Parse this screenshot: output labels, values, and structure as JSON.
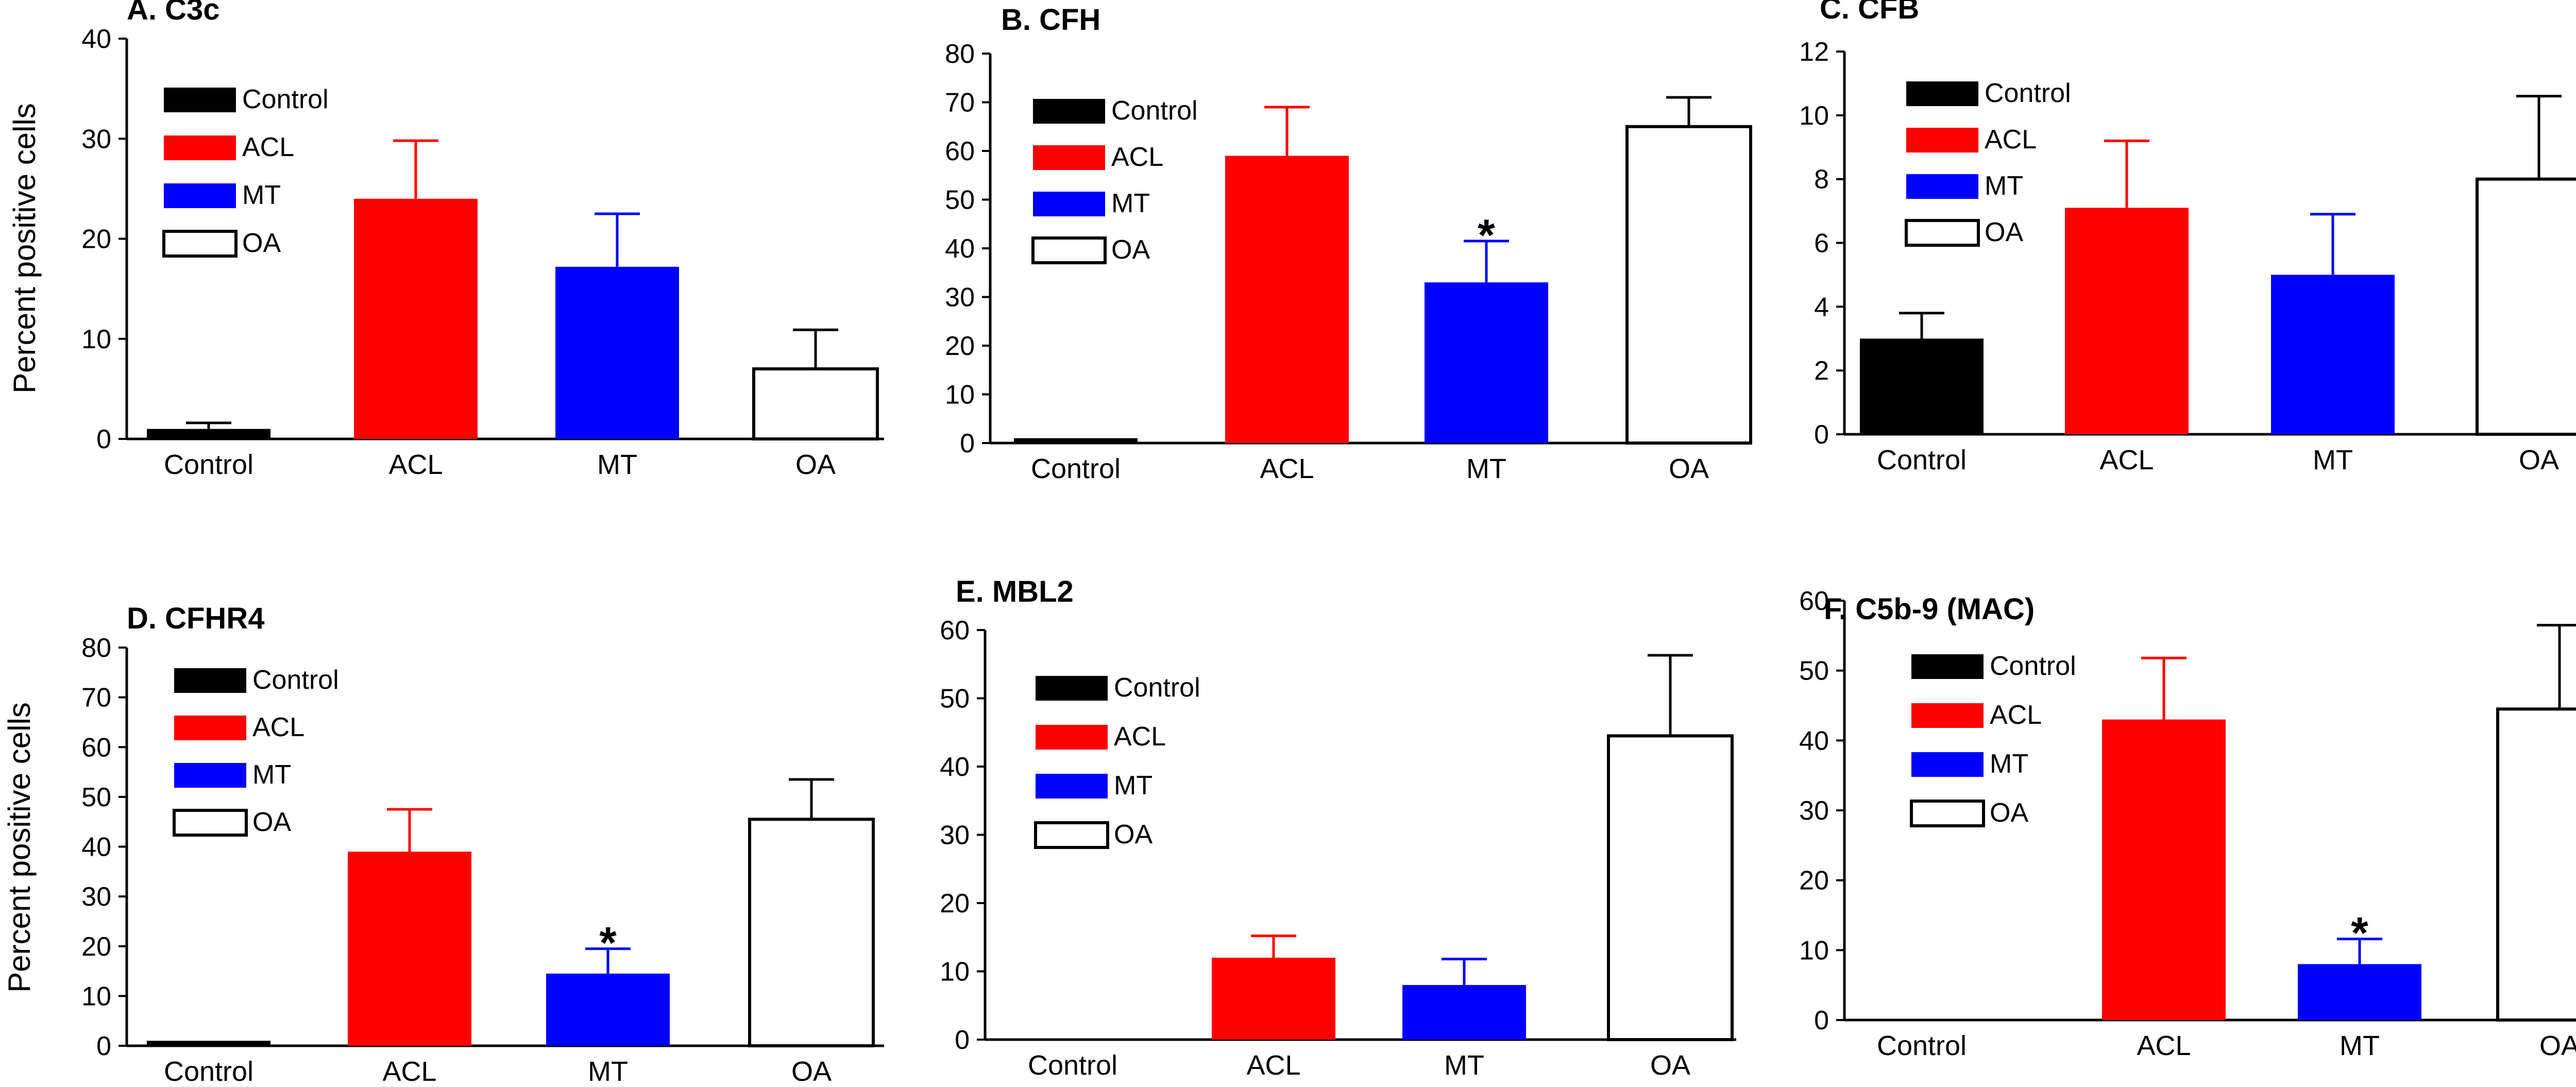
{
  "figure": {
    "ylabel": "Percent positive cells",
    "colors": {
      "Control": "#000000",
      "ACL": "#ff0000",
      "MT": "#0000ff",
      "OA": "#ffffff"
    }
  },
  "chart_data": [
    {
      "type": "bar",
      "title": "A. C3c",
      "categories": [
        "Control",
        "ACL",
        "MT",
        "OA"
      ],
      "values": [
        1,
        24,
        17.2,
        7
      ],
      "errors": [
        0.6,
        5.8,
        5.3,
        3.9
      ],
      "significance": [
        "",
        "",
        "",
        ""
      ],
      "legend": [
        "Control",
        "ACL",
        "MT",
        "OA"
      ],
      "xlabel": "",
      "ylabel": "Percent positive cells",
      "ylim": [
        0,
        40
      ],
      "yticks": [
        0,
        10,
        20,
        30,
        40
      ]
    },
    {
      "type": "bar",
      "title": "B. CFH",
      "categories": [
        "Control",
        "ACL",
        "MT",
        "OA"
      ],
      "values": [
        1,
        59,
        33,
        65
      ],
      "errors": [
        0,
        10,
        8.5,
        6
      ],
      "significance": [
        "",
        "",
        "*",
        ""
      ],
      "legend": [
        "Control",
        "ACL",
        "MT",
        "OA"
      ],
      "xlabel": "",
      "ylabel": "",
      "ylim": [
        0,
        80
      ],
      "yticks": [
        0,
        10,
        20,
        30,
        40,
        50,
        60,
        70,
        80
      ]
    },
    {
      "type": "bar",
      "title": "C. CFB",
      "categories": [
        "Control",
        "ACL",
        "MT",
        "OA"
      ],
      "values": [
        3,
        7.1,
        5,
        8
      ],
      "errors": [
        0.8,
        2.1,
        1.9,
        2.6
      ],
      "significance": [
        "",
        "",
        "",
        ""
      ],
      "legend": [
        "Control",
        "ACL",
        "MT",
        "OA"
      ],
      "xlabel": "",
      "ylabel": "",
      "ylim": [
        0,
        12
      ],
      "yticks": [
        0,
        2,
        4,
        6,
        8,
        10,
        12
      ]
    },
    {
      "type": "bar",
      "title": "D. CFHR4",
      "categories": [
        "Control",
        "ACL",
        "MT",
        "OA"
      ],
      "values": [
        1,
        39,
        14.5,
        45.5
      ],
      "errors": [
        0,
        8.5,
        5,
        8
      ],
      "significance": [
        "",
        "",
        "*",
        ""
      ],
      "legend": [
        "Control",
        "ACL",
        "MT",
        "OA"
      ],
      "xlabel": "",
      "ylabel": "Percent positive cells",
      "ylim": [
        0,
        80
      ],
      "yticks": [
        0,
        10,
        20,
        30,
        40,
        50,
        60,
        70,
        80
      ]
    },
    {
      "type": "bar",
      "title": "E. MBL2",
      "categories": [
        "Control",
        "ACL",
        "MT",
        "OA"
      ],
      "values": [
        0,
        12,
        8,
        44.5
      ],
      "errors": [
        0,
        3.2,
        3.8,
        11.8
      ],
      "significance": [
        "",
        "",
        "",
        ""
      ],
      "legend": [
        "Control",
        "ACL",
        "MT",
        "OA"
      ],
      "xlabel": "",
      "ylabel": "",
      "ylim": [
        0,
        60
      ],
      "yticks": [
        0,
        10,
        20,
        30,
        40,
        50,
        60
      ]
    },
    {
      "type": "bar",
      "title": "F. C5b-9 (MAC)",
      "categories": [
        "Control",
        "ACL",
        "MT",
        "OA"
      ],
      "values": [
        0,
        43,
        8,
        44.5
      ],
      "errors": [
        0,
        8.8,
        3.6,
        12
      ],
      "significance": [
        "",
        "",
        "*",
        ""
      ],
      "legend": [
        "Control",
        "ACL",
        "MT",
        "OA"
      ],
      "xlabel": "",
      "ylabel": "",
      "ylim": [
        0,
        60
      ],
      "yticks": [
        0,
        10,
        20,
        30,
        40,
        50,
        60
      ]
    }
  ]
}
